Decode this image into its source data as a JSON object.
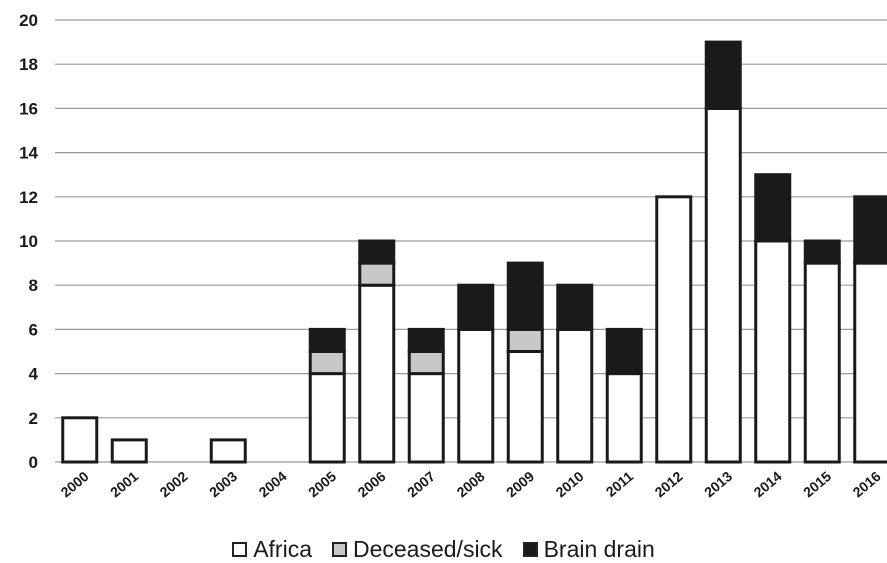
{
  "chart_data": {
    "type": "bar",
    "stacked": true,
    "categories": [
      "2000",
      "2001",
      "2002",
      "2003",
      "2004",
      "2005",
      "2006",
      "2007",
      "2008",
      "2009",
      "2010",
      "2011",
      "2012",
      "2013",
      "2014",
      "2015",
      "2016"
    ],
    "series": [
      {
        "name": "Africa",
        "values": [
          2,
          1,
          0,
          1,
          0,
          4,
          8,
          4,
          6,
          5,
          6,
          4,
          12,
          16,
          10,
          9,
          9
        ],
        "color": "#ffffff"
      },
      {
        "name": "Deceased/sick",
        "values": [
          0,
          0,
          0,
          0,
          0,
          1,
          1,
          1,
          0,
          1,
          0,
          0,
          0,
          0,
          0,
          0,
          0
        ],
        "color": "#c8c8c8"
      },
      {
        "name": "Brain drain",
        "values": [
          0,
          0,
          0,
          0,
          0,
          1,
          1,
          1,
          2,
          3,
          2,
          2,
          0,
          3,
          3,
          1,
          3
        ],
        "color": "#1a1a1a"
      }
    ],
    "y_ticks": [
      "0",
      "2",
      "4",
      "6",
      "8",
      "10",
      "12",
      "14",
      "16",
      "18",
      "20"
    ],
    "ylim": [
      0,
      20
    ],
    "grid": true,
    "legend_position": "bottom"
  }
}
